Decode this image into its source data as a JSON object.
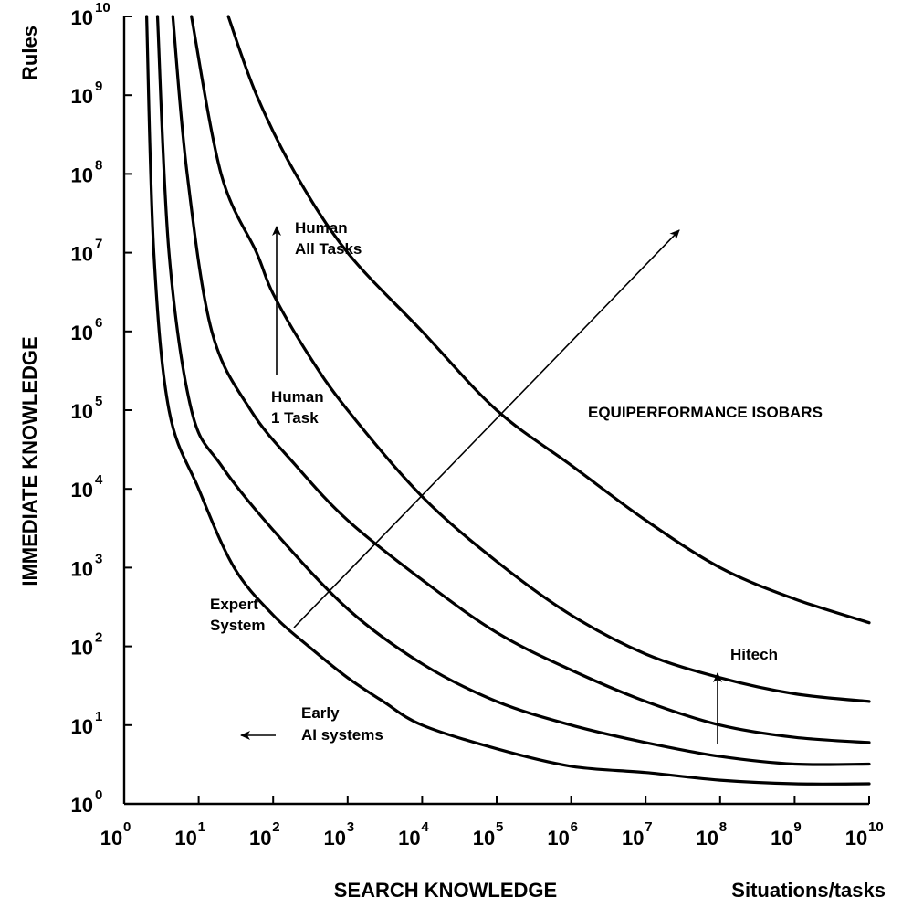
{
  "chart_data": {
    "type": "line",
    "title": "",
    "xlabel": "SEARCH KNOWLEDGE",
    "xunit": "Situations/tasks",
    "ylabel": "IMMEDIATE KNOWLEDGE",
    "yunit": "Rules",
    "xscale": "log",
    "yscale": "log",
    "xlim": [
      1,
      10000000000
    ],
    "ylim": [
      1,
      10000000000
    ],
    "grid": false,
    "legend": "none",
    "xticks": [
      {
        "base": "10",
        "exp": "0"
      },
      {
        "base": "10",
        "exp": "1"
      },
      {
        "base": "10",
        "exp": "2"
      },
      {
        "base": "10",
        "exp": "3"
      },
      {
        "base": "10",
        "exp": "4"
      },
      {
        "base": "10",
        "exp": "5"
      },
      {
        "base": "10",
        "exp": "6"
      },
      {
        "base": "10",
        "exp": "7"
      },
      {
        "base": "10",
        "exp": "8"
      },
      {
        "base": "10",
        "exp": "9"
      },
      {
        "base": "10",
        "exp": "10"
      }
    ],
    "yticks": [
      {
        "base": "10",
        "exp": "0"
      },
      {
        "base": "10",
        "exp": "1"
      },
      {
        "base": "10",
        "exp": "2"
      },
      {
        "base": "10",
        "exp": "3"
      },
      {
        "base": "10",
        "exp": "4"
      },
      {
        "base": "10",
        "exp": "5"
      },
      {
        "base": "10",
        "exp": "6"
      },
      {
        "base": "10",
        "exp": "7"
      },
      {
        "base": "10",
        "exp": "8"
      },
      {
        "base": "10",
        "exp": "9"
      },
      {
        "base": "10",
        "exp": "10"
      }
    ],
    "series": [
      {
        "points": [
          [
            2,
            10000000000
          ],
          [
            2.5,
            10000000
          ],
          [
            4,
            100000
          ],
          [
            10,
            10000
          ],
          [
            30,
            1000
          ],
          [
            100,
            250
          ],
          [
            300,
            100
          ],
          [
            1000,
            40
          ],
          [
            3000,
            20
          ],
          [
            10000,
            10
          ],
          [
            100000,
            5
          ],
          [
            1000000,
            3
          ],
          [
            10000000,
            2.5
          ],
          [
            100000000,
            2
          ],
          [
            1000000000,
            1.8
          ],
          [
            10000000000,
            1.8
          ]
        ]
      },
      {
        "points": [
          [
            2.8,
            10000000000
          ],
          [
            4,
            10000000
          ],
          [
            8,
            100000
          ],
          [
            20,
            20000
          ],
          [
            100,
            3000
          ],
          [
            1000,
            300
          ],
          [
            10000,
            60
          ],
          [
            100000,
            20
          ],
          [
            1000000,
            10
          ],
          [
            10000000,
            6
          ],
          [
            100000000,
            4
          ],
          [
            1000000000,
            3.2
          ],
          [
            10000000000,
            3.2
          ]
        ]
      },
      {
        "points": [
          [
            4.5,
            10000000000
          ],
          [
            7,
            100000000
          ],
          [
            15,
            1000000
          ],
          [
            50,
            100000
          ],
          [
            200,
            20000
          ],
          [
            1000,
            4000
          ],
          [
            10000,
            700
          ],
          [
            100000,
            150
          ],
          [
            1000000,
            50
          ],
          [
            10000000,
            20
          ],
          [
            100000000,
            10
          ],
          [
            1000000000,
            7
          ],
          [
            10000000000,
            6
          ]
        ]
      },
      {
        "points": [
          [
            8,
            10000000000
          ],
          [
            20,
            100000000
          ],
          [
            60,
            10000000
          ],
          [
            100,
            3000000
          ],
          [
            300,
            500000
          ],
          [
            1000,
            100000
          ],
          [
            10000,
            8000
          ],
          [
            100000,
            1200
          ],
          [
            1000000,
            250
          ],
          [
            10000000,
            80
          ],
          [
            100000000,
            40
          ],
          [
            1000000000,
            25
          ],
          [
            10000000000,
            20
          ]
        ]
      },
      {
        "points": [
          [
            25,
            10000000000
          ],
          [
            60,
            1000000000
          ],
          [
            200,
            100000000
          ],
          [
            1000,
            10000000
          ],
          [
            10000,
            1000000
          ],
          [
            100000,
            100000
          ],
          [
            1000000,
            20000
          ],
          [
            10000000,
            4000
          ],
          [
            100000000,
            1000
          ],
          [
            1000000000,
            400
          ],
          [
            10000000000,
            200
          ]
        ]
      }
    ],
    "annotations": {
      "human_all_tasks": [
        "Human",
        "All Tasks"
      ],
      "human_one_task": [
        "Human",
        "1 Task"
      ],
      "expert_system": [
        "Expert",
        "System"
      ],
      "early_ai": [
        "Early",
        "AI systems"
      ],
      "hitech": "Hitech",
      "isobars": "EQUIPERFORMANCE ISOBARS"
    }
  }
}
